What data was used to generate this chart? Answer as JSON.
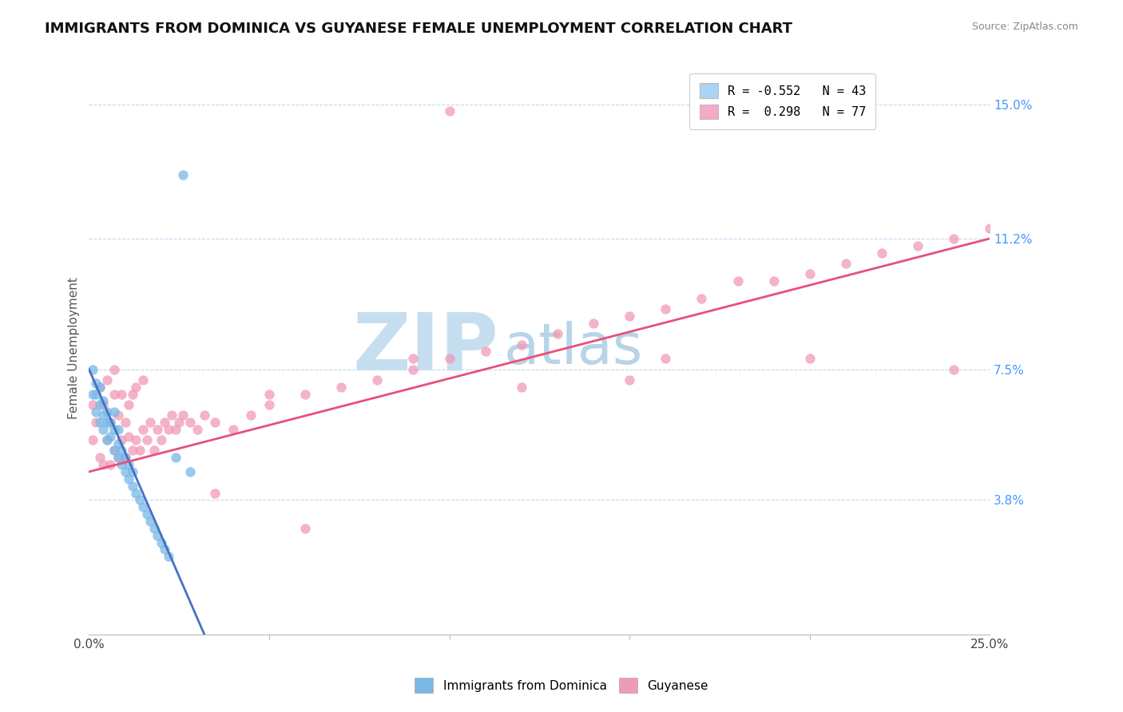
{
  "title": "IMMIGRANTS FROM DOMINICA VS GUYANESE FEMALE UNEMPLOYMENT CORRELATION CHART",
  "source": "Source: ZipAtlas.com",
  "ylabel": "Female Unemployment",
  "xmin": 0.0,
  "xmax": 0.25,
  "yticks_right": [
    0.038,
    0.075,
    0.112,
    0.15
  ],
  "ytick_labels_right": [
    "3.8%",
    "7.5%",
    "11.2%",
    "15.0%"
  ],
  "xtick_major": [
    0.0,
    0.25
  ],
  "xtick_major_labels": [
    "0.0%",
    "25.0%"
  ],
  "xtick_minor": [
    0.05,
    0.1,
    0.15,
    0.2
  ],
  "ymin": 0.0,
  "ymax": 0.162,
  "legend_entries": [
    {
      "label": "R = -0.552   N = 43",
      "color": "#aad4f5"
    },
    {
      "label": "R =  0.298   N = 77",
      "color": "#f5aac8"
    }
  ],
  "blue_scatter_x": [
    0.001,
    0.001,
    0.002,
    0.002,
    0.002,
    0.003,
    0.003,
    0.003,
    0.004,
    0.004,
    0.004,
    0.005,
    0.005,
    0.005,
    0.006,
    0.006,
    0.007,
    0.007,
    0.007,
    0.008,
    0.008,
    0.008,
    0.009,
    0.009,
    0.01,
    0.01,
    0.011,
    0.011,
    0.012,
    0.012,
    0.013,
    0.014,
    0.015,
    0.016,
    0.017,
    0.018,
    0.019,
    0.02,
    0.021,
    0.022,
    0.024,
    0.026,
    0.028
  ],
  "blue_scatter_y": [
    0.068,
    0.075,
    0.063,
    0.071,
    0.068,
    0.065,
    0.07,
    0.06,
    0.058,
    0.062,
    0.066,
    0.055,
    0.06,
    0.063,
    0.056,
    0.06,
    0.052,
    0.058,
    0.063,
    0.05,
    0.054,
    0.058,
    0.048,
    0.052,
    0.046,
    0.05,
    0.044,
    0.048,
    0.042,
    0.046,
    0.04,
    0.038,
    0.036,
    0.034,
    0.032,
    0.03,
    0.028,
    0.026,
    0.024,
    0.022,
    0.05,
    0.13,
    0.046
  ],
  "pink_scatter_x": [
    0.001,
    0.001,
    0.002,
    0.003,
    0.003,
    0.004,
    0.004,
    0.005,
    0.005,
    0.006,
    0.006,
    0.007,
    0.007,
    0.007,
    0.008,
    0.008,
    0.009,
    0.009,
    0.01,
    0.01,
    0.011,
    0.011,
    0.012,
    0.012,
    0.013,
    0.013,
    0.014,
    0.015,
    0.015,
    0.016,
    0.017,
    0.018,
    0.019,
    0.02,
    0.021,
    0.022,
    0.023,
    0.024,
    0.025,
    0.026,
    0.028,
    0.03,
    0.032,
    0.035,
    0.04,
    0.045,
    0.05,
    0.06,
    0.07,
    0.08,
    0.09,
    0.1,
    0.11,
    0.12,
    0.13,
    0.14,
    0.15,
    0.16,
    0.17,
    0.18,
    0.19,
    0.2,
    0.21,
    0.22,
    0.23,
    0.24,
    0.25,
    0.035,
    0.06,
    0.1,
    0.15,
    0.2,
    0.24,
    0.05,
    0.09,
    0.12,
    0.16
  ],
  "pink_scatter_y": [
    0.055,
    0.065,
    0.06,
    0.05,
    0.07,
    0.048,
    0.065,
    0.055,
    0.072,
    0.048,
    0.06,
    0.052,
    0.068,
    0.075,
    0.05,
    0.062,
    0.055,
    0.068,
    0.05,
    0.06,
    0.056,
    0.065,
    0.052,
    0.068,
    0.055,
    0.07,
    0.052,
    0.058,
    0.072,
    0.055,
    0.06,
    0.052,
    0.058,
    0.055,
    0.06,
    0.058,
    0.062,
    0.058,
    0.06,
    0.062,
    0.06,
    0.058,
    0.062,
    0.06,
    0.058,
    0.062,
    0.065,
    0.068,
    0.07,
    0.072,
    0.075,
    0.078,
    0.08,
    0.082,
    0.085,
    0.088,
    0.09,
    0.092,
    0.095,
    0.1,
    0.1,
    0.102,
    0.105,
    0.108,
    0.11,
    0.112,
    0.115,
    0.04,
    0.03,
    0.148,
    0.072,
    0.078,
    0.075,
    0.068,
    0.078,
    0.07,
    0.078
  ],
  "blue_line_x": [
    0.0,
    0.032
  ],
  "blue_line_y": [
    0.075,
    0.0
  ],
  "pink_line_x": [
    0.0,
    0.25
  ],
  "pink_line_y": [
    0.046,
    0.112
  ],
  "blue_color": "#7ab8e8",
  "pink_color": "#f09ab8",
  "blue_line_color": "#4472c4",
  "pink_line_color": "#e8507a",
  "watermark_zip": "ZIP",
  "watermark_atlas": "atlas",
  "watermark_color_zip": "#c5dff0",
  "watermark_color_atlas": "#b8d4e8",
  "title_fontsize": 13,
  "axis_label_fontsize": 11,
  "tick_fontsize": 11,
  "legend_fontsize": 11
}
